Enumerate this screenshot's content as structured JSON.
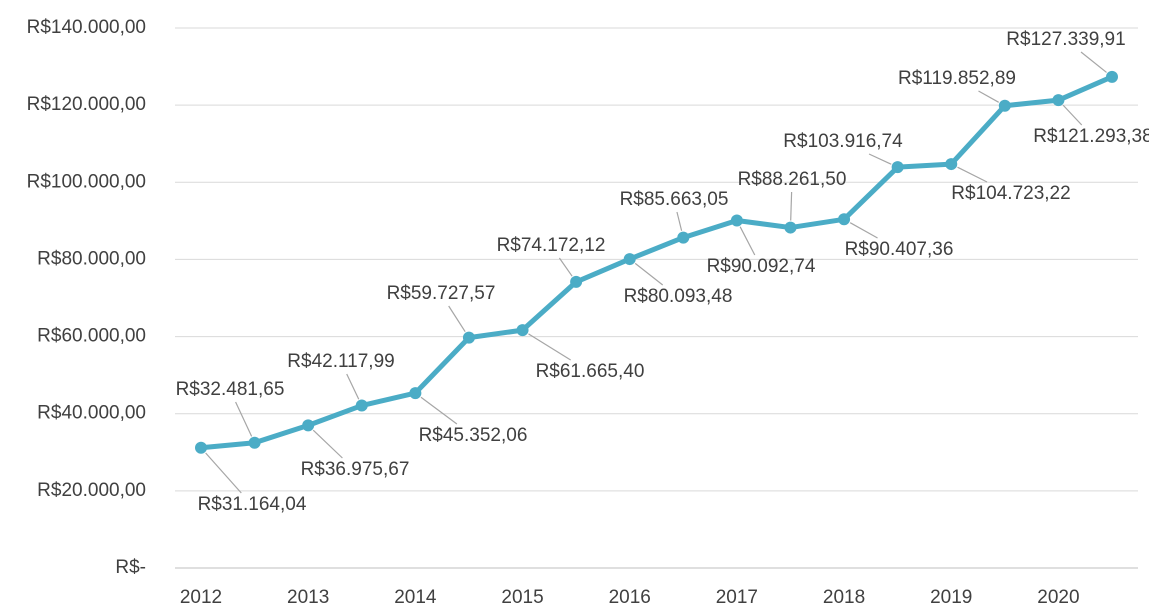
{
  "chart_data": {
    "type": "line",
    "categories": [
      "2012",
      null,
      "2013",
      null,
      "2014",
      null,
      "2015",
      null,
      "2016",
      null,
      "2017",
      null,
      "2018",
      null,
      "2019",
      null,
      "2020",
      null
    ],
    "series": [
      {
        "name": null,
        "color": "#4bacc6",
        "values": [
          31164.04,
          32481.65,
          36975.67,
          42117.99,
          45352.06,
          59727.57,
          61665.4,
          74172.12,
          80093.48,
          85663.05,
          90092.74,
          88261.5,
          90407.36,
          103916.74,
          104723.22,
          119852.89,
          121293.38,
          127339.91
        ],
        "value_labels": [
          "R$31.164,04",
          "R$32.481,65",
          "R$36.975,67",
          "R$42.117,99",
          "R$45.352,06",
          "R$59.727,57",
          "R$61.665,40",
          "R$74.172,12",
          "R$80.093,48",
          "R$85.663,05",
          "R$90.092,74",
          "R$88.261,50",
          "R$90.407,36",
          "R$103.916,74",
          "R$104.723,22",
          "R$119.852,89",
          "R$121.293,38",
          "R$127.339,91"
        ]
      }
    ],
    "ylim": [
      0,
      140000
    ],
    "yticks": [
      {
        "value": 0,
        "label": "R$-"
      },
      {
        "value": 20000,
        "label": "R$20.000,00"
      },
      {
        "value": 40000,
        "label": "R$40.000,00"
      },
      {
        "value": 60000,
        "label": "R$60.000,00"
      },
      {
        "value": 80000,
        "label": "R$80.000,00"
      },
      {
        "value": 100000,
        "label": "R$100.000,00"
      },
      {
        "value": 120000,
        "label": "R$120.000,00"
      },
      {
        "value": 140000,
        "label": "R$140.000,00"
      }
    ],
    "grid": true
  }
}
